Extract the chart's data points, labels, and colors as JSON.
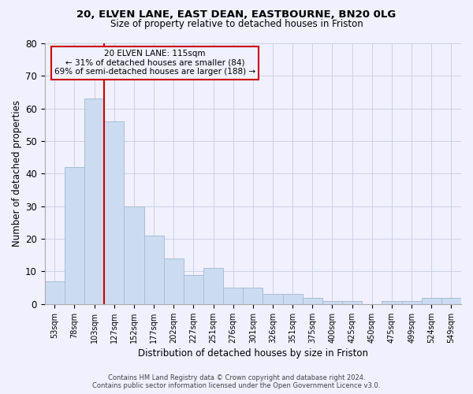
{
  "title1": "20, ELVEN LANE, EAST DEAN, EASTBOURNE, BN20 0LG",
  "title2": "Size of property relative to detached houses in Friston",
  "xlabel": "Distribution of detached houses by size in Friston",
  "ylabel": "Number of detached properties",
  "categories": [
    "53sqm",
    "78sqm",
    "103sqm",
    "127sqm",
    "152sqm",
    "177sqm",
    "202sqm",
    "227sqm",
    "251sqm",
    "276sqm",
    "301sqm",
    "326sqm",
    "351sqm",
    "375sqm",
    "400sqm",
    "425sqm",
    "450sqm",
    "475sqm",
    "499sqm",
    "524sqm",
    "549sqm"
  ],
  "values": [
    7,
    42,
    63,
    56,
    30,
    21,
    14,
    9,
    11,
    5,
    5,
    3,
    3,
    2,
    1,
    1,
    0,
    1,
    1,
    2,
    2
  ],
  "bar_color": "#ccdcf0",
  "bar_edge_color": "#aabdd8",
  "vline_after_idx": 2,
  "vline_color": "#cc0000",
  "annotation_line1": "20 ELVEN LANE: 115sqm",
  "annotation_line2": "← 31% of detached houses are smaller (84)",
  "annotation_line3": "69% of semi-detached houses are larger (188) →",
  "annotation_box_edgecolor": "#cc0000",
  "ylim": [
    0,
    80
  ],
  "yticks": [
    0,
    10,
    20,
    30,
    40,
    50,
    60,
    70,
    80
  ],
  "footer1": "Contains HM Land Registry data © Crown copyright and database right 2024.",
  "footer2": "Contains public sector information licensed under the Open Government Licence v3.0.",
  "bg_color": "#f0f0ff",
  "grid_color": "#c8cce0"
}
